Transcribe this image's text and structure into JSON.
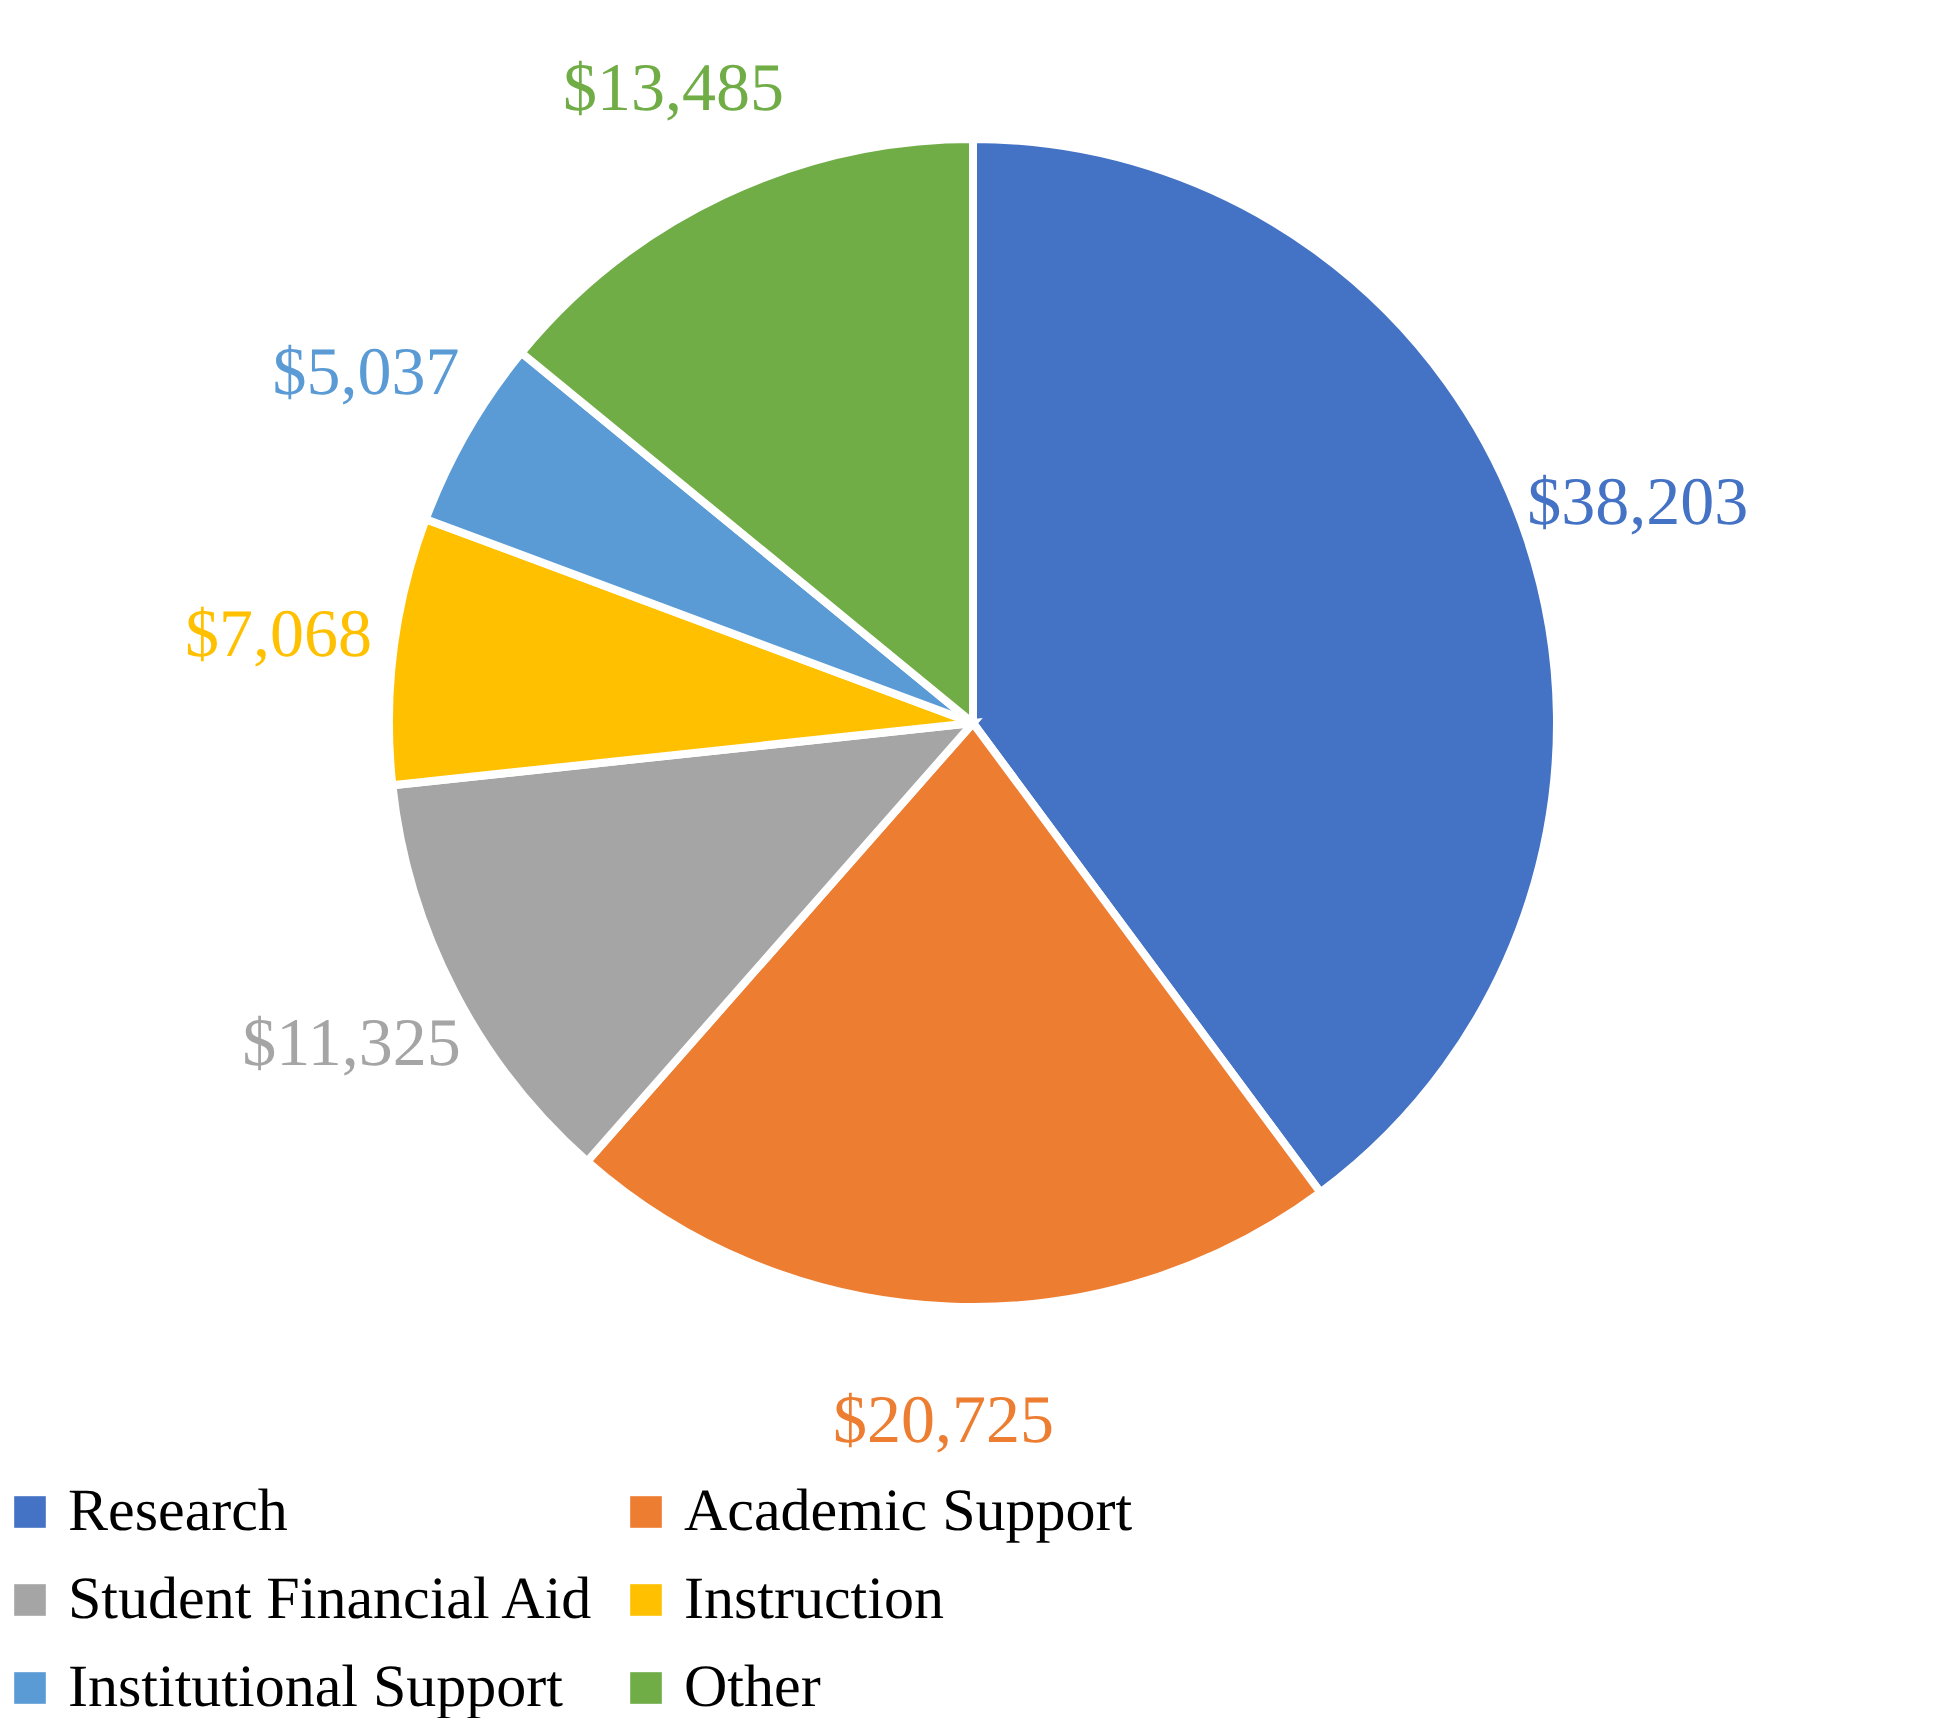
{
  "chart_data": {
    "type": "pie",
    "categories": [
      "Research",
      "Academic Support",
      "Student Financial Aid",
      "Instruction",
      "Institutional Support",
      "Other"
    ],
    "values": [
      38203,
      20725,
      11325,
      7068,
      5037,
      13485
    ],
    "value_labels": [
      "$38,203",
      "$20,725",
      "$11,325",
      "$7,068",
      "$5,037",
      "$13,485"
    ],
    "colors": [
      "#4472c4",
      "#ed7d31",
      "#a5a5a5",
      "#ffc000",
      "#5b9bd5",
      "#70ad47"
    ],
    "legend": "bottom"
  }
}
